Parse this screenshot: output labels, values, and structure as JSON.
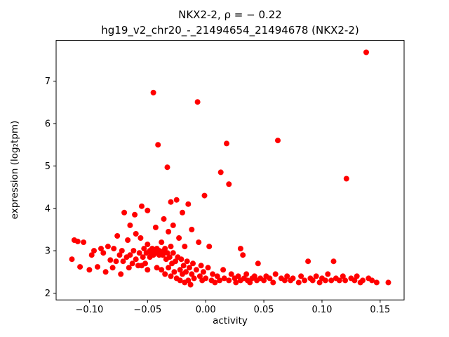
{
  "chart_data": {
    "type": "scatter",
    "title": "NKX2-2, ρ = − 0.22",
    "subtitle": "hg19_v2_chr20_-_21494654_21494678 (NKX2-2)",
    "xlabel": "activity",
    "ylabel": "expression (log₂tpm)",
    "marker_color": "#ff0000",
    "grid": false,
    "legend": "none",
    "xlim": [
      -0.1286,
      0.1706
    ],
    "ylim": [
      1.84,
      7.96
    ],
    "xticks": [
      -0.1,
      -0.05,
      0.0,
      0.05,
      0.1,
      0.15
    ],
    "yticks": [
      2,
      3,
      4,
      5,
      6,
      7
    ],
    "points": [
      [
        -0.115,
        2.8
      ],
      [
        -0.113,
        3.25
      ],
      [
        -0.11,
        3.22
      ],
      [
        -0.108,
        2.62
      ],
      [
        -0.105,
        3.2
      ],
      [
        -0.1,
        2.55
      ],
      [
        -0.098,
        2.9
      ],
      [
        -0.096,
        3.0
      ],
      [
        -0.093,
        2.62
      ],
      [
        -0.09,
        3.05
      ],
      [
        -0.088,
        2.95
      ],
      [
        -0.086,
        2.5
      ],
      [
        -0.084,
        3.1
      ],
      [
        -0.082,
        2.78
      ],
      [
        -0.08,
        2.6
      ],
      [
        -0.079,
        3.05
      ],
      [
        -0.077,
        2.75
      ],
      [
        -0.076,
        3.35
      ],
      [
        -0.074,
        2.9
      ],
      [
        -0.073,
        2.45
      ],
      [
        -0.072,
        3.0
      ],
      [
        -0.071,
        2.75
      ],
      [
        -0.07,
        3.9
      ],
      [
        -0.068,
        2.85
      ],
      [
        -0.067,
        3.25
      ],
      [
        -0.066,
        2.6
      ],
      [
        -0.065,
        2.9
      ],
      [
        -0.065,
        3.6
      ],
      [
        -0.063,
        2.7
      ],
      [
        -0.062,
        3.0
      ],
      [
        -0.061,
        3.85
      ],
      [
        -0.06,
        2.8
      ],
      [
        -0.06,
        3.4
      ],
      [
        -0.058,
        2.65
      ],
      [
        -0.057,
        2.95
      ],
      [
        -0.056,
        3.3
      ],
      [
        -0.055,
        2.65
      ],
      [
        -0.055,
        4.05
      ],
      [
        -0.054,
        2.85
      ],
      [
        -0.053,
        3.05
      ],
      [
        -0.052,
        2.7
      ],
      [
        -0.051,
        2.95
      ],
      [
        -0.05,
        2.55
      ],
      [
        -0.05,
        3.15
      ],
      [
        -0.05,
        3.95
      ],
      [
        -0.048,
        2.85
      ],
      [
        -0.048,
        3.0
      ],
      [
        -0.047,
        2.95
      ],
      [
        -0.046,
        3.05
      ],
      [
        -0.045,
        2.9
      ],
      [
        -0.045,
        6.73
      ],
      [
        -0.044,
        3.0
      ],
      [
        -0.043,
        2.95
      ],
      [
        -0.043,
        3.55
      ],
      [
        -0.042,
        2.6
      ],
      [
        -0.042,
        3.05
      ],
      [
        -0.041,
        5.5
      ],
      [
        -0.04,
        2.9
      ],
      [
        -0.04,
        3.0
      ],
      [
        -0.039,
        2.95
      ],
      [
        -0.038,
        2.55
      ],
      [
        -0.038,
        3.2
      ],
      [
        -0.037,
        2.9
      ],
      [
        -0.036,
        3.0
      ],
      [
        -0.036,
        3.75
      ],
      [
        -0.035,
        2.45
      ],
      [
        -0.035,
        3.05
      ],
      [
        -0.034,
        2.8
      ],
      [
        -0.033,
        4.97
      ],
      [
        -0.033,
        2.95
      ],
      [
        -0.032,
        3.45
      ],
      [
        -0.032,
        2.6
      ],
      [
        -0.031,
        2.85
      ],
      [
        -0.03,
        2.4
      ],
      [
        -0.03,
        3.1
      ],
      [
        -0.03,
        4.15
      ],
      [
        -0.029,
        2.7
      ],
      [
        -0.028,
        2.95
      ],
      [
        -0.028,
        3.6
      ],
      [
        -0.027,
        2.5
      ],
      [
        -0.026,
        2.75
      ],
      [
        -0.025,
        4.2
      ],
      [
        -0.025,
        2.35
      ],
      [
        -0.024,
        2.85
      ],
      [
        -0.023,
        3.3
      ],
      [
        -0.022,
        2.55
      ],
      [
        -0.022,
        2.3
      ],
      [
        -0.021,
        2.8
      ],
      [
        -0.02,
        2.45
      ],
      [
        -0.02,
        3.9
      ],
      [
        -0.019,
        2.65
      ],
      [
        -0.018,
        2.25
      ],
      [
        -0.018,
        3.1
      ],
      [
        -0.017,
        2.5
      ],
      [
        -0.016,
        2.75
      ],
      [
        -0.015,
        4.1
      ],
      [
        -0.015,
        2.3
      ],
      [
        -0.014,
        2.6
      ],
      [
        -0.013,
        2.2
      ],
      [
        -0.012,
        2.45
      ],
      [
        -0.012,
        3.5
      ],
      [
        -0.011,
        2.7
      ],
      [
        -0.01,
        2.35
      ],
      [
        -0.008,
        2.55
      ],
      [
        -0.007,
        6.51
      ],
      [
        -0.006,
        3.2
      ],
      [
        -0.005,
        2.4
      ],
      [
        -0.004,
        2.65
      ],
      [
        -0.003,
        2.3
      ],
      [
        -0.002,
        2.5
      ],
      [
        -0.001,
        4.3
      ],
      [
        0.0,
        2.35
      ],
      [
        0.002,
        2.6
      ],
      [
        0.003,
        3.1
      ],
      [
        0.005,
        2.3
      ],
      [
        0.006,
        2.45
      ],
      [
        0.008,
        2.25
      ],
      [
        0.01,
        2.4
      ],
      [
        0.012,
        2.3
      ],
      [
        0.013,
        4.85
      ],
      [
        0.015,
        2.55
      ],
      [
        0.016,
        2.35
      ],
      [
        0.018,
        5.53
      ],
      [
        0.02,
        4.57
      ],
      [
        0.02,
        2.3
      ],
      [
        0.022,
        2.45
      ],
      [
        0.025,
        2.35
      ],
      [
        0.026,
        2.25
      ],
      [
        0.028,
        2.4
      ],
      [
        0.03,
        2.3
      ],
      [
        0.03,
        3.05
      ],
      [
        0.032,
        2.9
      ],
      [
        0.033,
        2.35
      ],
      [
        0.035,
        2.45
      ],
      [
        0.036,
        2.3
      ],
      [
        0.038,
        2.25
      ],
      [
        0.04,
        2.35
      ],
      [
        0.042,
        2.4
      ],
      [
        0.044,
        2.3
      ],
      [
        0.045,
        2.7
      ],
      [
        0.047,
        2.35
      ],
      [
        0.05,
        2.3
      ],
      [
        0.052,
        2.4
      ],
      [
        0.055,
        2.35
      ],
      [
        0.058,
        2.25
      ],
      [
        0.06,
        2.45
      ],
      [
        0.062,
        5.6
      ],
      [
        0.065,
        2.35
      ],
      [
        0.068,
        2.3
      ],
      [
        0.07,
        2.4
      ],
      [
        0.073,
        2.3
      ],
      [
        0.075,
        2.35
      ],
      [
        0.08,
        2.25
      ],
      [
        0.082,
        2.4
      ],
      [
        0.085,
        2.3
      ],
      [
        0.088,
        2.75
      ],
      [
        0.09,
        2.35
      ],
      [
        0.092,
        2.3
      ],
      [
        0.095,
        2.4
      ],
      [
        0.098,
        2.25
      ],
      [
        0.1,
        2.35
      ],
      [
        0.103,
        2.3
      ],
      [
        0.105,
        2.45
      ],
      [
        0.108,
        2.3
      ],
      [
        0.11,
        2.75
      ],
      [
        0.112,
        2.35
      ],
      [
        0.115,
        2.3
      ],
      [
        0.118,
        2.4
      ],
      [
        0.12,
        2.3
      ],
      [
        0.121,
        4.7
      ],
      [
        0.125,
        2.35
      ],
      [
        0.128,
        2.3
      ],
      [
        0.13,
        2.4
      ],
      [
        0.133,
        2.25
      ],
      [
        0.135,
        2.3
      ],
      [
        0.138,
        7.68
      ],
      [
        0.14,
        2.35
      ],
      [
        0.143,
        2.3
      ],
      [
        0.147,
        2.25
      ],
      [
        0.157,
        2.25
      ]
    ]
  }
}
